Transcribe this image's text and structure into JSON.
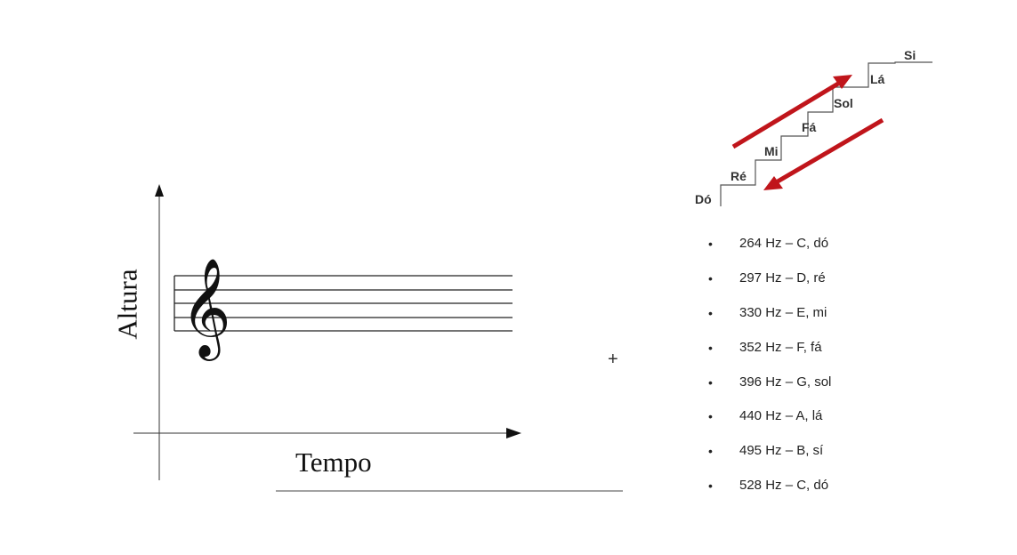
{
  "left_diagram": {
    "y_axis_label": "Altura",
    "x_axis_label": "Tempo",
    "clef": "𝄞"
  },
  "scale_staircase": {
    "steps": [
      "Dó",
      "Ré",
      "Mi",
      "Fá",
      "Sol",
      "Lá",
      "Si"
    ],
    "arrow_color": "#c0151b"
  },
  "frequency_list": [
    "264 Hz – C, dó",
    "297 Hz – D, ré",
    "330 Hz – E, mi",
    "352 Hz – F, fá",
    "396 Hz – G, sol",
    "440 Hz – A, lá",
    "495 Hz – B, sí",
    "528 Hz – C, dó"
  ],
  "cursor_icon": "crosshair-icon"
}
